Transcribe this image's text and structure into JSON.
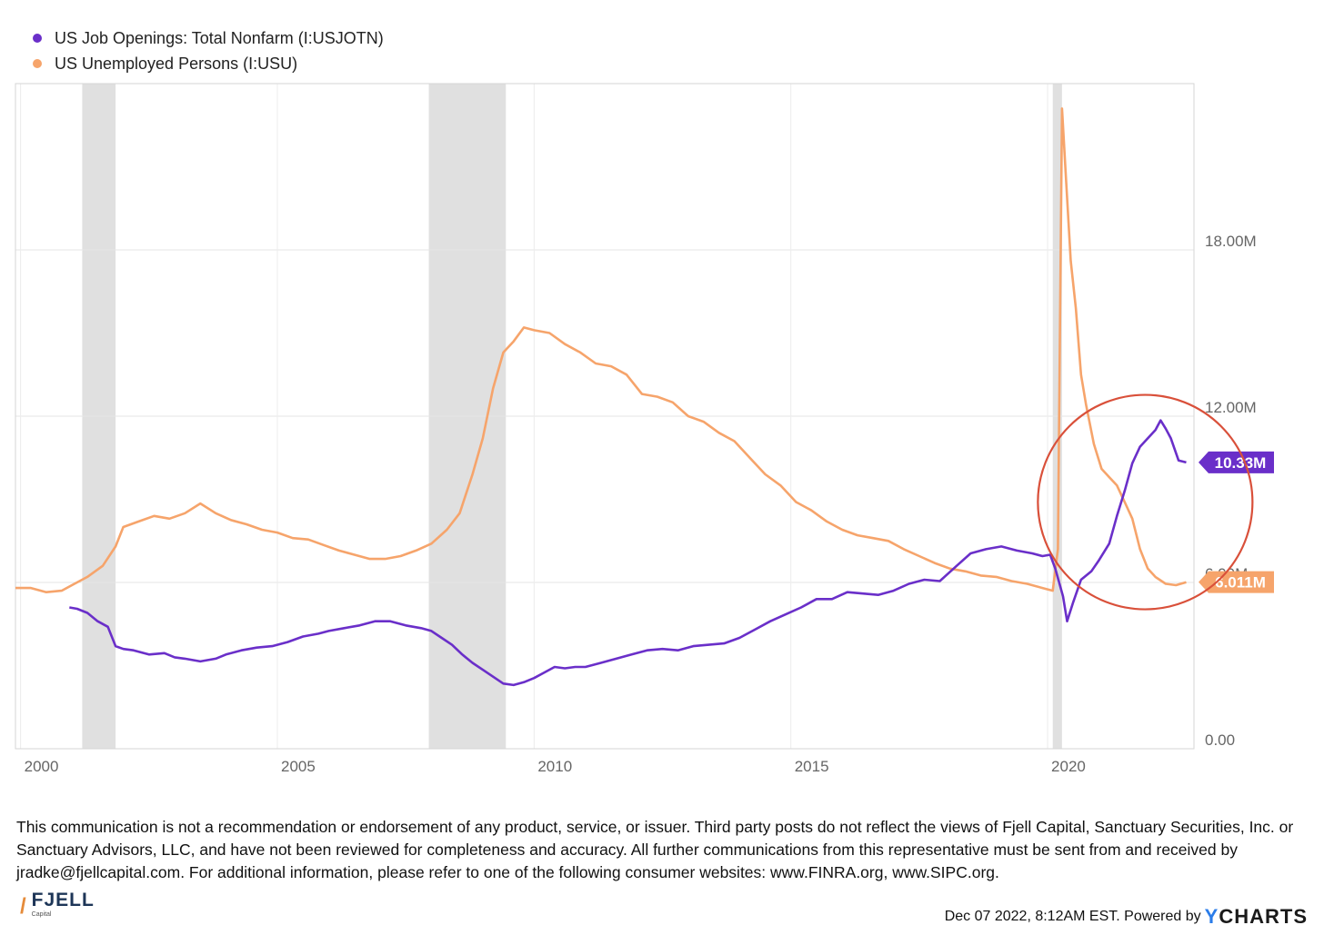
{
  "legend": [
    {
      "label": "US Job Openings: Total Nonfarm (I:USJOTN)",
      "color": "#6a2fc9"
    },
    {
      "label": "US Unemployed Persons (I:USU)",
      "color": "#f6a46b"
    }
  ],
  "chart_data": {
    "type": "line",
    "title": "",
    "xlabel": "",
    "ylabel": "",
    "x_range": [
      1999.9,
      2022.85
    ],
    "ylim": [
      0,
      24
    ],
    "x_ticks": [
      {
        "value": 2000,
        "label": "2000"
      },
      {
        "value": 2005,
        "label": "2005"
      },
      {
        "value": 2010,
        "label": "2010"
      },
      {
        "value": 2015,
        "label": "2015"
      },
      {
        "value": 2020,
        "label": "2020"
      }
    ],
    "y_ticks": [
      {
        "value": 0,
        "label": "0.00"
      },
      {
        "value": 6,
        "label": "6.00M"
      },
      {
        "value": 12,
        "label": "12.00M"
      },
      {
        "value": 18,
        "label": "18.00M"
      }
    ],
    "recessions": [
      {
        "start": 2001.2,
        "end": 2001.85
      },
      {
        "start": 2007.95,
        "end": 2009.45
      },
      {
        "start": 2020.1,
        "end": 2020.28
      }
    ],
    "series": [
      {
        "name": "US Job Openings: Total Nonfarm (I:USJOTN)",
        "color": "#6a2fc9",
        "end_label": "10.33M",
        "points": [
          [
            2000.95,
            5.1
          ],
          [
            2001.1,
            5.05
          ],
          [
            2001.3,
            4.9
          ],
          [
            2001.5,
            4.6
          ],
          [
            2001.7,
            4.4
          ],
          [
            2001.85,
            3.7
          ],
          [
            2002.0,
            3.6
          ],
          [
            2002.2,
            3.55
          ],
          [
            2002.5,
            3.4
          ],
          [
            2002.8,
            3.45
          ],
          [
            2003.0,
            3.3
          ],
          [
            2003.2,
            3.25
          ],
          [
            2003.5,
            3.15
          ],
          [
            2003.8,
            3.25
          ],
          [
            2004.0,
            3.4
          ],
          [
            2004.3,
            3.55
          ],
          [
            2004.6,
            3.65
          ],
          [
            2004.9,
            3.7
          ],
          [
            2005.2,
            3.85
          ],
          [
            2005.5,
            4.05
          ],
          [
            2005.8,
            4.15
          ],
          [
            2006.0,
            4.25
          ],
          [
            2006.3,
            4.35
          ],
          [
            2006.6,
            4.45
          ],
          [
            2006.9,
            4.6
          ],
          [
            2007.2,
            4.6
          ],
          [
            2007.5,
            4.45
          ],
          [
            2007.8,
            4.35
          ],
          [
            2008.0,
            4.25
          ],
          [
            2008.2,
            4.0
          ],
          [
            2008.4,
            3.75
          ],
          [
            2008.6,
            3.4
          ],
          [
            2008.8,
            3.1
          ],
          [
            2009.0,
            2.85
          ],
          [
            2009.2,
            2.6
          ],
          [
            2009.4,
            2.35
          ],
          [
            2009.6,
            2.3
          ],
          [
            2009.8,
            2.4
          ],
          [
            2010.0,
            2.55
          ],
          [
            2010.2,
            2.75
          ],
          [
            2010.4,
            2.95
          ],
          [
            2010.6,
            2.9
          ],
          [
            2010.8,
            2.95
          ],
          [
            2011.0,
            2.95
          ],
          [
            2011.3,
            3.1
          ],
          [
            2011.6,
            3.25
          ],
          [
            2011.9,
            3.4
          ],
          [
            2012.2,
            3.55
          ],
          [
            2012.5,
            3.6
          ],
          [
            2012.8,
            3.55
          ],
          [
            2013.1,
            3.7
          ],
          [
            2013.4,
            3.75
          ],
          [
            2013.7,
            3.8
          ],
          [
            2014.0,
            4.0
          ],
          [
            2014.3,
            4.3
          ],
          [
            2014.6,
            4.6
          ],
          [
            2014.9,
            4.85
          ],
          [
            2015.2,
            5.1
          ],
          [
            2015.5,
            5.4
          ],
          [
            2015.8,
            5.4
          ],
          [
            2016.1,
            5.65
          ],
          [
            2016.4,
            5.6
          ],
          [
            2016.7,
            5.55
          ],
          [
            2017.0,
            5.7
          ],
          [
            2017.3,
            5.95
          ],
          [
            2017.6,
            6.1
          ],
          [
            2017.9,
            6.05
          ],
          [
            2018.2,
            6.55
          ],
          [
            2018.5,
            7.05
          ],
          [
            2018.8,
            7.2
          ],
          [
            2019.1,
            7.3
          ],
          [
            2019.4,
            7.15
          ],
          [
            2019.7,
            7.05
          ],
          [
            2019.9,
            6.95
          ],
          [
            2020.05,
            7.0
          ],
          [
            2020.15,
            6.5
          ],
          [
            2020.3,
            5.5
          ],
          [
            2020.38,
            4.6
          ],
          [
            2020.5,
            5.3
          ],
          [
            2020.65,
            6.1
          ],
          [
            2020.85,
            6.4
          ],
          [
            2021.0,
            6.8
          ],
          [
            2021.2,
            7.4
          ],
          [
            2021.35,
            8.4
          ],
          [
            2021.5,
            9.3
          ],
          [
            2021.65,
            10.3
          ],
          [
            2021.8,
            10.9
          ],
          [
            2021.95,
            11.2
          ],
          [
            2022.1,
            11.5
          ],
          [
            2022.2,
            11.85
          ],
          [
            2022.3,
            11.55
          ],
          [
            2022.4,
            11.2
          ],
          [
            2022.55,
            10.4
          ],
          [
            2022.7,
            10.33
          ]
        ]
      },
      {
        "name": "US Unemployed Persons (I:USU)",
        "color": "#f6a46b",
        "end_label": "6.011M",
        "points": [
          [
            1999.9,
            5.8
          ],
          [
            2000.2,
            5.8
          ],
          [
            2000.5,
            5.65
          ],
          [
            2000.8,
            5.7
          ],
          [
            2001.0,
            5.9
          ],
          [
            2001.3,
            6.2
          ],
          [
            2001.6,
            6.6
          ],
          [
            2001.85,
            7.3
          ],
          [
            2002.0,
            8.0
          ],
          [
            2002.3,
            8.2
          ],
          [
            2002.6,
            8.4
          ],
          [
            2002.9,
            8.3
          ],
          [
            2003.2,
            8.5
          ],
          [
            2003.5,
            8.85
          ],
          [
            2003.8,
            8.5
          ],
          [
            2004.1,
            8.25
          ],
          [
            2004.4,
            8.1
          ],
          [
            2004.7,
            7.9
          ],
          [
            2005.0,
            7.8
          ],
          [
            2005.3,
            7.6
          ],
          [
            2005.6,
            7.55
          ],
          [
            2005.9,
            7.35
          ],
          [
            2006.2,
            7.15
          ],
          [
            2006.5,
            7.0
          ],
          [
            2006.8,
            6.85
          ],
          [
            2007.1,
            6.85
          ],
          [
            2007.4,
            6.95
          ],
          [
            2007.7,
            7.15
          ],
          [
            2008.0,
            7.4
          ],
          [
            2008.3,
            7.9
          ],
          [
            2008.55,
            8.5
          ],
          [
            2008.8,
            9.9
          ],
          [
            2009.0,
            11.2
          ],
          [
            2009.2,
            13.0
          ],
          [
            2009.4,
            14.3
          ],
          [
            2009.6,
            14.7
          ],
          [
            2009.8,
            15.2
          ],
          [
            2010.0,
            15.1
          ],
          [
            2010.3,
            15.0
          ],
          [
            2010.6,
            14.6
          ],
          [
            2010.9,
            14.3
          ],
          [
            2011.2,
            13.9
          ],
          [
            2011.5,
            13.8
          ],
          [
            2011.8,
            13.5
          ],
          [
            2012.1,
            12.8
          ],
          [
            2012.4,
            12.7
          ],
          [
            2012.7,
            12.5
          ],
          [
            2013.0,
            12.0
          ],
          [
            2013.3,
            11.8
          ],
          [
            2013.6,
            11.4
          ],
          [
            2013.9,
            11.1
          ],
          [
            2014.2,
            10.5
          ],
          [
            2014.5,
            9.9
          ],
          [
            2014.8,
            9.5
          ],
          [
            2015.1,
            8.9
          ],
          [
            2015.4,
            8.6
          ],
          [
            2015.7,
            8.2
          ],
          [
            2016.0,
            7.9
          ],
          [
            2016.3,
            7.7
          ],
          [
            2016.6,
            7.6
          ],
          [
            2016.9,
            7.5
          ],
          [
            2017.2,
            7.2
          ],
          [
            2017.5,
            6.95
          ],
          [
            2017.8,
            6.7
          ],
          [
            2018.1,
            6.5
          ],
          [
            2018.4,
            6.4
          ],
          [
            2018.7,
            6.25
          ],
          [
            2019.0,
            6.2
          ],
          [
            2019.3,
            6.05
          ],
          [
            2019.6,
            5.95
          ],
          [
            2019.9,
            5.8
          ],
          [
            2020.1,
            5.7
          ],
          [
            2020.2,
            7.2
          ],
          [
            2020.28,
            23.1
          ],
          [
            2020.36,
            20.5
          ],
          [
            2020.45,
            17.6
          ],
          [
            2020.55,
            15.9
          ],
          [
            2020.65,
            13.5
          ],
          [
            2020.75,
            12.4
          ],
          [
            2020.9,
            11.0
          ],
          [
            2021.05,
            10.1
          ],
          [
            2021.2,
            9.8
          ],
          [
            2021.35,
            9.5
          ],
          [
            2021.5,
            8.9
          ],
          [
            2021.65,
            8.3
          ],
          [
            2021.8,
            7.2
          ],
          [
            2021.95,
            6.5
          ],
          [
            2022.1,
            6.2
          ],
          [
            2022.3,
            5.95
          ],
          [
            2022.5,
            5.9
          ],
          [
            2022.7,
            6.011
          ]
        ]
      }
    ]
  },
  "disclaimer": "This communication is not a recommendation or endorsement of any product, service, or issuer. Third party posts do not reflect the views of Fjell Capital, Sanctuary Securities, Inc. or Sanctuary Advisors, LLC, and have not been reviewed for completeness and accuracy. All further communications from this representative must be sent from and received by jradke@fjellcapital.com. For additional information, please refer to one of the following consumer websites: www.FINRA.org, www.SIPC.org.",
  "logo": {
    "mark": "/",
    "name": "FJELL",
    "sub": "Capital"
  },
  "footer": {
    "timestamp": "Dec 07 2022, 8:12AM EST. Powered by",
    "brand_y": "Y",
    "brand_rest": "CHARTS"
  }
}
